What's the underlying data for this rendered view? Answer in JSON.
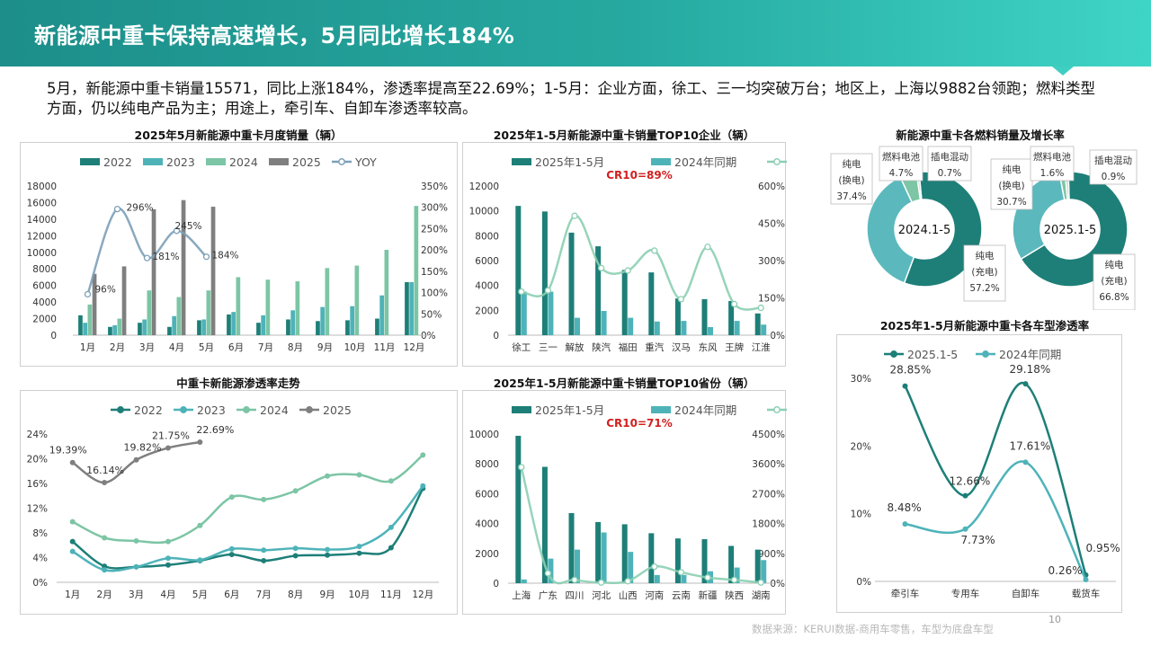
{
  "header": {
    "title": "新能源中重卡保持高速增长，5月同比增长184%"
  },
  "summary": "5月，新能源中重卡销量15571，同比上涨184%，渗透率提高至22.69%；1-5月：企业方面，徐工、三一均突破万台；地区上，上海以9882台领跑；燃料类型方面，仍以纯电产品为主；用途上，牵引车、自卸车渗透率较高。",
  "colors": {
    "teal_dark": "#1d7f78",
    "teal": "#4eb3b9",
    "teal_light": "#7cc5a5",
    "grey": "#7f7f7f",
    "header": "#26a9a0"
  },
  "chart_data": [
    {
      "id": "monthly",
      "type": "bar",
      "title": "2025年5月新能源中重卡月度销量（辆）",
      "categories": [
        "1月",
        "2月",
        "3月",
        "4月",
        "5月",
        "6月",
        "7月",
        "8月",
        "9月",
        "10月",
        "11月",
        "12月"
      ],
      "series": [
        {
          "name": "2022",
          "values": [
            2400,
            1000,
            1500,
            1000,
            1800,
            2500,
            1500,
            1900,
            1700,
            1800,
            2000,
            6400
          ]
        },
        {
          "name": "2023",
          "values": [
            1500,
            1200,
            1900,
            2300,
            1900,
            2800,
            2400,
            3000,
            3400,
            3500,
            4800,
            6400
          ]
        },
        {
          "name": "2024",
          "values": [
            3700,
            2000,
            5400,
            4600,
            5400,
            7000,
            6700,
            6500,
            8100,
            8400,
            10300,
            15600
          ]
        },
        {
          "name": "2025",
          "values": [
            7400,
            8300,
            15200,
            16300,
            15500,
            null,
            null,
            null,
            null,
            null,
            null,
            null
          ]
        },
        {
          "name": "YOY",
          "values": [
            96,
            296,
            181,
            245,
            184,
            null,
            null,
            null,
            null,
            null,
            null,
            null
          ],
          "labels": [
            "96%",
            "296%",
            "181%",
            "245%",
            "184%"
          ]
        }
      ],
      "yticks": [
        "18000",
        "16000",
        "14000",
        "12000",
        "10000",
        "8000",
        "6000",
        "4000",
        "2000",
        "0"
      ],
      "y2ticks": [
        "350%",
        "300%",
        "250%",
        "200%",
        "150%",
        "100%",
        "50%",
        "0%"
      ],
      "ylim": [
        0,
        18000
      ],
      "y2lim": [
        0,
        350
      ],
      "legend": "top"
    },
    {
      "id": "companies",
      "type": "bar",
      "title": "2025年1-5月新能源中重卡销量TOP10企业（辆）",
      "annotation": "CR10=89%",
      "categories": [
        "徐工",
        "三一",
        "解放",
        "陕汽",
        "福田",
        "重汽",
        "汉马",
        "东风",
        "王牌",
        "江淮"
      ],
      "series": [
        {
          "name": "2025年1-5月",
          "values": [
            10400,
            9950,
            8250,
            7150,
            5250,
            5050,
            2950,
            2900,
            2750,
            1750
          ]
        },
        {
          "name": "2024年同期",
          "values": [
            3500,
            3500,
            1400,
            1950,
            1400,
            1100,
            1150,
            650,
            1150,
            850
          ]
        },
        {
          "name": "YoY",
          "values": [
            175,
            180,
            480,
            270,
            260,
            340,
            145,
            355,
            125,
            110
          ]
        }
      ],
      "yticks": [
        "12000",
        "10000",
        "8000",
        "6000",
        "4000",
        "2000",
        "0"
      ],
      "y2ticks": [
        "600%",
        "450%",
        "300%",
        "150%",
        "0%"
      ],
      "ylim": [
        0,
        12000
      ],
      "y2lim": [
        0,
        600
      ],
      "legend": "top"
    },
    {
      "id": "fuel2024",
      "type": "pie",
      "title": "新能源中重卡各燃料销量及增长率",
      "center_label": "2024.1-5",
      "slices": [
        {
          "name": "纯电（充电）",
          "value": 57.2,
          "label": "57.2%"
        },
        {
          "name": "纯电（换电）",
          "value": 37.4,
          "label": "37.4%"
        },
        {
          "name": "燃料电池",
          "value": 4.7,
          "label": "4.7%"
        },
        {
          "name": "插电混动",
          "value": 0.7,
          "label": "0.7%"
        }
      ]
    },
    {
      "id": "fuel2025",
      "type": "pie",
      "center_label": "2025.1-5",
      "slices": [
        {
          "name": "纯电（充电）",
          "value": 66.8,
          "label": "66.8%"
        },
        {
          "name": "纯电（换电）",
          "value": 30.7,
          "label": "30.7%"
        },
        {
          "name": "燃料电池",
          "value": 1.6,
          "label": "1.6%"
        },
        {
          "name": "插电混动",
          "value": 0.9,
          "label": "0.9%"
        }
      ]
    },
    {
      "id": "penetration",
      "type": "line",
      "title": "中重卡新能源渗透率走势",
      "categories": [
        "1月",
        "2月",
        "3月",
        "4月",
        "5月",
        "6月",
        "7月",
        "8月",
        "9月",
        "10月",
        "11月",
        "12月"
      ],
      "series": [
        {
          "name": "2022",
          "values": [
            6.6,
            2.6,
            2.5,
            2.8,
            3.5,
            4.5,
            3.5,
            4.3,
            4.4,
            4.7,
            5.6,
            15.2
          ]
        },
        {
          "name": "2023",
          "values": [
            5.0,
            2.0,
            2.5,
            3.9,
            3.6,
            5.4,
            5.2,
            5.5,
            5.3,
            5.8,
            8.9,
            15.6
          ]
        },
        {
          "name": "2024",
          "values": [
            9.8,
            7.2,
            6.7,
            6.6,
            9.2,
            13.8,
            13.4,
            14.8,
            17.2,
            17.4,
            16.4,
            20.6
          ]
        },
        {
          "name": "2025",
          "values": [
            19.39,
            16.14,
            19.82,
            21.75,
            22.69,
            null,
            null,
            null,
            null,
            null,
            null,
            null
          ],
          "labels": [
            "19.39%",
            "16.14%",
            "19.82%",
            "21.75%",
            "22.69%"
          ]
        }
      ],
      "yticks": [
        "24%",
        "20%",
        "16%",
        "12%",
        "8%",
        "4%",
        "0%"
      ],
      "ylim": [
        0,
        24
      ],
      "legend": "top"
    },
    {
      "id": "provinces",
      "type": "bar",
      "title": "2025年1-5月新能源中重卡销量TOP10省份（辆）",
      "annotation": "CR10=71%",
      "categories": [
        "上海",
        "广东",
        "四川",
        "河北",
        "山西",
        "河南",
        "云南",
        "新疆",
        "陕西",
        "湖南"
      ],
      "series": [
        {
          "name": "2025年1-5月",
          "values": [
            9882,
            7800,
            4700,
            4100,
            3950,
            3350,
            3000,
            2950,
            2500,
            2250
          ]
        },
        {
          "name": "2024年同期",
          "values": [
            250,
            1650,
            2250,
            3400,
            2100,
            550,
            550,
            800,
            1050,
            1550
          ]
        },
        {
          "name": "YoY",
          "values": [
            3500,
            300,
            100,
            20,
            60,
            500,
            330,
            170,
            100,
            20
          ]
        }
      ],
      "yticks": [
        "10000",
        "8000",
        "6000",
        "4000",
        "2000",
        "0"
      ],
      "y2ticks": [
        "4500%",
        "3600%",
        "2700%",
        "1800%",
        "900%",
        "0%"
      ],
      "ylim": [
        0,
        10000
      ],
      "y2lim": [
        0,
        4500
      ],
      "legend": "top"
    },
    {
      "id": "usage",
      "type": "line",
      "title": "2025年1-5月新能源中重卡各车型渗透率",
      "categories": [
        "牵引车",
        "专用车",
        "自卸车",
        "载货车"
      ],
      "series": [
        {
          "name": "2025.1-5",
          "values": [
            28.85,
            12.66,
            29.18,
            0.95
          ],
          "labels": [
            "28.85%",
            "12.66%",
            "29.18%",
            "0.95%"
          ]
        },
        {
          "name": "2024年同期",
          "values": [
            8.48,
            7.73,
            17.61,
            0.26
          ],
          "labels": [
            "8.48%",
            "7.73%",
            "17.61%",
            "0.26%"
          ]
        }
      ],
      "yticks": [
        "30%",
        "20%",
        "10%",
        "0%"
      ],
      "ylim": [
        0,
        30
      ],
      "legend": "top"
    }
  ],
  "source": "数据来源：KERUI数据-商用车零售，车型为底盘车型",
  "page_number": "10"
}
